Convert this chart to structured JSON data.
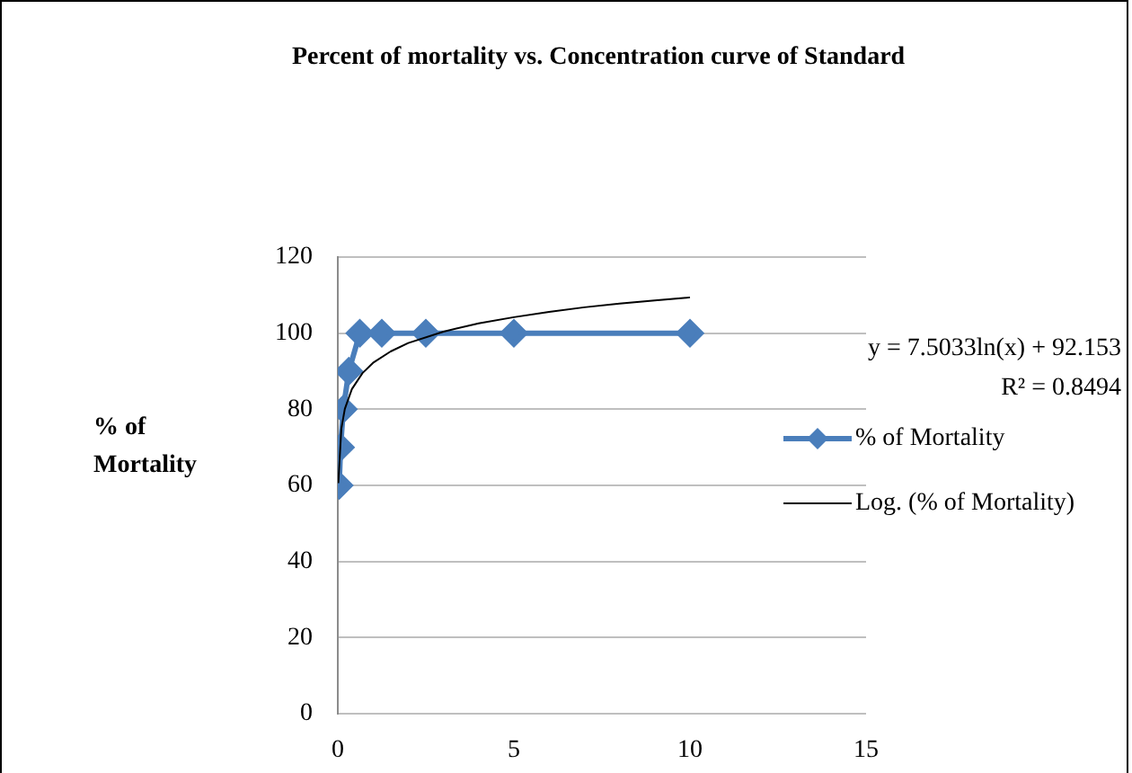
{
  "chart_data": {
    "type": "line",
    "title": "Percent of mortality vs. Concentration curve of Standard",
    "ylabel": "% of Mortality",
    "xlim": [
      0,
      15
    ],
    "xticks": [
      0,
      5,
      10,
      15
    ],
    "ylim": [
      0,
      120
    ],
    "yticks": [
      0,
      20,
      40,
      60,
      80,
      100,
      120
    ],
    "grid": "y",
    "legend": "right",
    "marker": "diamond",
    "line_style": "solid",
    "series": [
      {
        "name": "% of Mortality",
        "color": "#4a7ebb",
        "x": [
          0.039,
          0.078,
          0.156,
          0.3125,
          0.625,
          1.25,
          2.5,
          5,
          10
        ],
        "values": [
          60,
          70,
          80,
          90,
          100,
          100,
          100,
          100,
          100
        ]
      },
      {
        "name": "Log. (% of Mortality)",
        "color": "#000000",
        "marker": "none",
        "x": [
          0.015,
          0.1,
          0.2,
          0.4,
          0.7,
          1,
          1.5,
          2,
          3,
          4,
          5,
          6,
          7,
          8,
          9,
          10
        ],
        "values": [
          60.6,
          74.9,
          80.1,
          85.3,
          89.5,
          92.2,
          95.2,
          97.4,
          100.4,
          102.6,
          104.2,
          105.6,
          106.8,
          107.8,
          108.6,
          109.4
        ]
      }
    ],
    "annotations": [
      "y = 7.5033ln(x) + 92.153",
      "R² = 0.8494"
    ]
  }
}
